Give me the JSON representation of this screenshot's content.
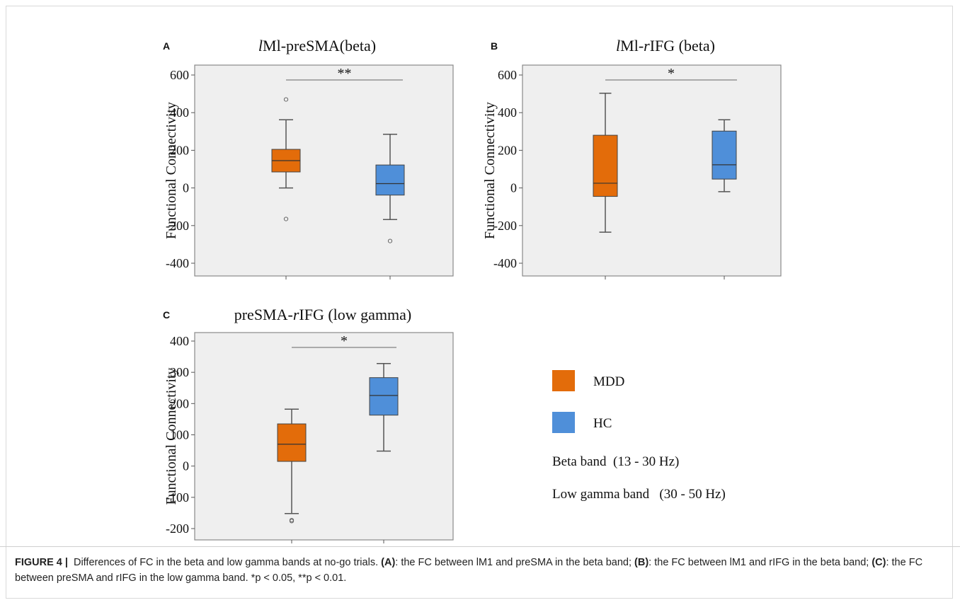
{
  "figure_label": "FIGURE 4",
  "caption": {
    "intro": "Differences of FC in the beta and low gamma bands at no-go trials.",
    "a_tag": "(A)",
    "a_text": ": the FC between lM1 and preSMA in the beta band;",
    "b_tag": "(B)",
    "b_text": ": the FC between lM1 and rIFG in the beta band;",
    "c_tag": "(C)",
    "c_text": ": the FC between preSMA and rIFG in the low gamma band. *p < 0.05, **p < 0.01."
  },
  "legend": {
    "items": [
      {
        "label": "MDD",
        "color": "#e36c0a"
      },
      {
        "label": "HC",
        "color": "#4f8fd9"
      }
    ],
    "notes": [
      "Beta band  (13 - 30 Hz)",
      "Low gamma band   (30 - 50 Hz)"
    ]
  },
  "colors": {
    "MDD": "#e36c0a",
    "HC": "#4f8fd9",
    "panel_bg": "#efefef"
  },
  "chart_data": [
    {
      "type": "box",
      "panel_label": "A",
      "title": "lMl-preSMA(beta)",
      "ylabel": "Functional Connectivity",
      "ylim": [
        -450,
        650
      ],
      "yticks": [
        600,
        400,
        200,
        0,
        -200,
        -400
      ],
      "significance": "**",
      "groups": [
        {
          "name": "MDD",
          "whisker_low": 0,
          "q1": 85,
          "median": 145,
          "q3": 205,
          "whisker_high": 362,
          "outliers": [
            470,
            -165
          ]
        },
        {
          "name": "HC",
          "whisker_low": -168,
          "q1": -38,
          "median": 23,
          "q3": 122,
          "whisker_high": 285,
          "outliers": [
            -282
          ]
        }
      ]
    },
    {
      "type": "box",
      "panel_label": "B",
      "title": "lMl-rIFG (beta)",
      "ylabel": "Functional Connectivity",
      "ylim": [
        -450,
        650
      ],
      "yticks": [
        600,
        400,
        200,
        0,
        -200,
        -400
      ],
      "significance": "*",
      "groups": [
        {
          "name": "MDD",
          "whisker_low": -235,
          "q1": -45,
          "median": 25,
          "q3": 280,
          "whisker_high": 503,
          "outliers": []
        },
        {
          "name": "HC",
          "whisker_low": -20,
          "q1": 47,
          "median": 123,
          "q3": 302,
          "whisker_high": 362,
          "outliers": []
        }
      ]
    },
    {
      "type": "box",
      "panel_label": "C",
      "title": "preSMA-rIFG (low gamma)",
      "ylabel": "Functional Connectivity",
      "ylim": [
        -240,
        460
      ],
      "yticks": [
        400,
        300,
        200,
        100,
        0,
        -100,
        -200
      ],
      "significance": "*",
      "groups": [
        {
          "name": "MDD",
          "whisker_low": -152,
          "q1": 15,
          "median": 70,
          "q3": 135,
          "whisker_high": 182,
          "outliers": [
            -173,
            -176
          ]
        },
        {
          "name": "HC",
          "whisker_low": 48,
          "q1": 163,
          "median": 226,
          "q3": 283,
          "whisker_high": 328,
          "outliers": []
        }
      ]
    }
  ]
}
